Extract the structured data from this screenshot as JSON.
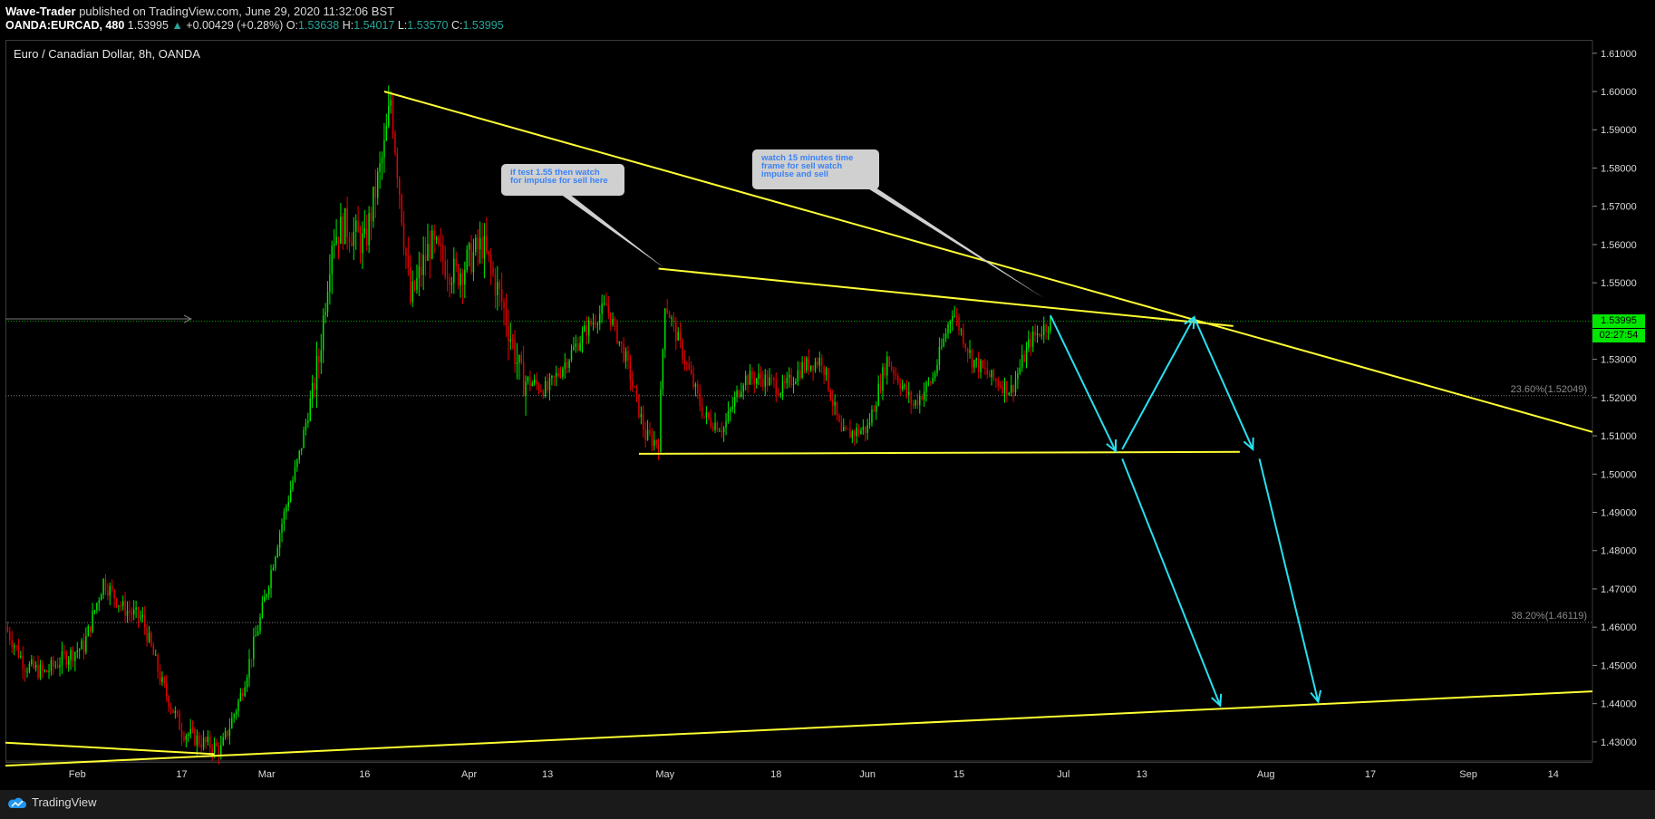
{
  "header": {
    "author": "Wave-Trader",
    "published_text": "published on TradingView.com, June 29, 2020 11:32:06 BST",
    "symbol": "OANDA:EURCAD, 480",
    "last": "1.53995",
    "change_arrow": "▲",
    "change": "+0.00429 (+0.28%)",
    "o_label": "O:",
    "o": "1.53638",
    "h_label": "H:",
    "h": "1.54017",
    "l_label": "L:",
    "l": "1.53570",
    "c_label": "C:",
    "c": "1.53995"
  },
  "price_tag": {
    "price": "1.53995",
    "countdown": "02:27:54"
  },
  "footer": {
    "brand": "TradingView"
  },
  "colors": {
    "up": "#00e600",
    "down": "#e60000",
    "trendline": "#ffff33",
    "arrow": "#29e0f0",
    "grid_dot_green": "#00b300",
    "fib": "#7a7a7a",
    "price_tag_bg": "#00e600",
    "axis_text": "#d9d9d9"
  },
  "icons": {
    "logo": "tradingview-cloud-icon"
  },
  "chart_data": {
    "type": "candlestick",
    "title": "Euro / Canadian Dollar, 8h, OANDA",
    "xlabel": "",
    "ylabel": "",
    "ylim": [
      1.425,
      1.6135
    ],
    "y_ticks": [
      "1.43000",
      "1.44000",
      "1.45000",
      "1.46000",
      "1.47000",
      "1.48000",
      "1.49000",
      "1.50000",
      "1.51000",
      "1.52000",
      "1.53000",
      "1.54000",
      "1.55000",
      "1.56000",
      "1.57000",
      "1.58000",
      "1.59000",
      "1.60000",
      "1.61000"
    ],
    "x_ticks": [
      {
        "label": "Feb",
        "date": "2020-02-01"
      },
      {
        "label": "17",
        "date": "2020-02-17"
      },
      {
        "label": "Mar",
        "date": "2020-03-01"
      },
      {
        "label": "16",
        "date": "2020-03-16"
      },
      {
        "label": "Apr",
        "date": "2020-04-01"
      },
      {
        "label": "13",
        "date": "2020-04-13"
      },
      {
        "label": "May",
        "date": "2020-05-01"
      },
      {
        "label": "18",
        "date": "2020-05-18"
      },
      {
        "label": "Jun",
        "date": "2020-06-01"
      },
      {
        "label": "15",
        "date": "2020-06-15"
      },
      {
        "label": "Jul",
        "date": "2020-07-01"
      },
      {
        "label": "13",
        "date": "2020-07-13"
      },
      {
        "label": "Aug",
        "date": "2020-08-01"
      },
      {
        "label": "17",
        "date": "2020-08-17"
      },
      {
        "label": "Sep",
        "date": "2020-09-01"
      },
      {
        "label": "14",
        "date": "2020-09-14"
      }
    ],
    "x_range": [
      "2020-01-21",
      "2020-09-20"
    ],
    "price_path": [
      [
        "2020-01-21",
        1.46
      ],
      [
        "2020-01-24",
        1.45
      ],
      [
        "2020-01-27",
        1.448
      ],
      [
        "2020-01-30",
        1.452
      ],
      [
        "2020-02-02",
        1.455
      ],
      [
        "2020-02-05",
        1.472
      ],
      [
        "2020-02-08",
        1.465
      ],
      [
        "2020-02-11",
        1.462
      ],
      [
        "2020-02-14",
        1.445
      ],
      [
        "2020-02-17",
        1.433
      ],
      [
        "2020-02-20",
        1.43
      ],
      [
        "2020-02-23",
        1.428
      ],
      [
        "2020-02-26",
        1.442
      ],
      [
        "2020-02-29",
        1.462
      ],
      [
        "2020-03-03",
        1.485
      ],
      [
        "2020-03-06",
        1.505
      ],
      [
        "2020-03-09",
        1.53
      ],
      [
        "2020-03-11",
        1.562
      ],
      [
        "2020-03-13",
        1.565
      ],
      [
        "2020-03-16",
        1.56
      ],
      [
        "2020-03-19",
        1.585
      ],
      [
        "2020-03-20",
        1.598
      ],
      [
        "2020-03-23",
        1.545
      ],
      [
        "2020-03-26",
        1.56
      ],
      [
        "2020-03-30",
        1.552
      ],
      [
        "2020-04-03",
        1.56
      ],
      [
        "2020-04-06",
        1.545
      ],
      [
        "2020-04-09",
        1.525
      ],
      [
        "2020-04-13",
        1.522
      ],
      [
        "2020-04-16",
        1.53
      ],
      [
        "2020-04-19",
        1.538
      ],
      [
        "2020-04-22",
        1.544
      ],
      [
        "2020-04-25",
        1.53
      ],
      [
        "2020-04-28",
        1.51
      ],
      [
        "2020-04-30",
        1.508
      ],
      [
        "2020-05-01",
        1.545
      ],
      [
        "2020-05-04",
        1.53
      ],
      [
        "2020-05-07",
        1.515
      ],
      [
        "2020-05-10",
        1.512
      ],
      [
        "2020-05-13",
        1.525
      ],
      [
        "2020-05-16",
        1.525
      ],
      [
        "2020-05-19",
        1.522
      ],
      [
        "2020-05-22",
        1.528
      ],
      [
        "2020-05-25",
        1.53
      ],
      [
        "2020-05-28",
        1.51
      ],
      [
        "2020-06-01",
        1.512
      ],
      [
        "2020-06-04",
        1.53
      ],
      [
        "2020-06-08",
        1.518
      ],
      [
        "2020-06-11",
        1.525
      ],
      [
        "2020-06-14",
        1.543
      ],
      [
        "2020-06-17",
        1.53
      ],
      [
        "2020-06-20",
        1.525
      ],
      [
        "2020-06-23",
        1.522
      ],
      [
        "2020-06-26",
        1.535
      ],
      [
        "2020-06-29",
        1.53995
      ]
    ],
    "horizontal_levels": [
      {
        "label": "",
        "value": 1.53995,
        "style": "dotted-green"
      },
      {
        "label": "23.60%(1.52049)",
        "value": 1.52049,
        "style": "dotted-gray"
      },
      {
        "label": "38.20%(1.46119)",
        "value": 1.46119,
        "style": "dotted-gray"
      }
    ],
    "trendlines": [
      {
        "from": [
          "2020-03-19",
          1.6
        ],
        "to": [
          "2020-09-20",
          1.511
        ]
      },
      {
        "from": [
          "2020-04-30",
          1.5537
        ],
        "to": [
          "2020-07-27",
          1.5387
        ]
      },
      {
        "from": [
          "2020-04-27",
          1.5053
        ],
        "to": [
          "2020-07-28",
          1.5058
        ]
      },
      {
        "from": [
          "2020-01-21",
          1.4298
        ],
        "to": [
          "2020-02-22",
          1.4268
        ]
      },
      {
        "from": [
          "2020-01-21",
          1.4238
        ],
        "to": [
          "2020-09-20",
          1.4432
        ]
      }
    ],
    "projection_arrows": [
      {
        "from": [
          "2020-06-29",
          1.5415
        ],
        "to": [
          "2020-07-09",
          1.506
        ]
      },
      {
        "from": [
          "2020-07-10",
          1.5065
        ],
        "to": [
          "2020-07-21",
          1.541
        ]
      },
      {
        "from": [
          "2020-07-21",
          1.541
        ],
        "to": [
          "2020-07-30",
          1.5065
        ]
      },
      {
        "from": [
          "2020-07-10",
          1.504
        ],
        "to": [
          "2020-07-25",
          1.4395
        ]
      },
      {
        "from": [
          "2020-07-31",
          1.504
        ],
        "to": [
          "2020-08-09",
          1.4405
        ]
      }
    ],
    "annotations": [
      {
        "text": "if test 1.55 then watch for impulse for sell here",
        "anchor": [
          "2020-05-01",
          1.5537
        ]
      },
      {
        "text": "watch 15 minutes time frame for sell watch impulse and sell",
        "anchor": [
          "2020-06-28",
          1.546
        ]
      }
    ]
  }
}
